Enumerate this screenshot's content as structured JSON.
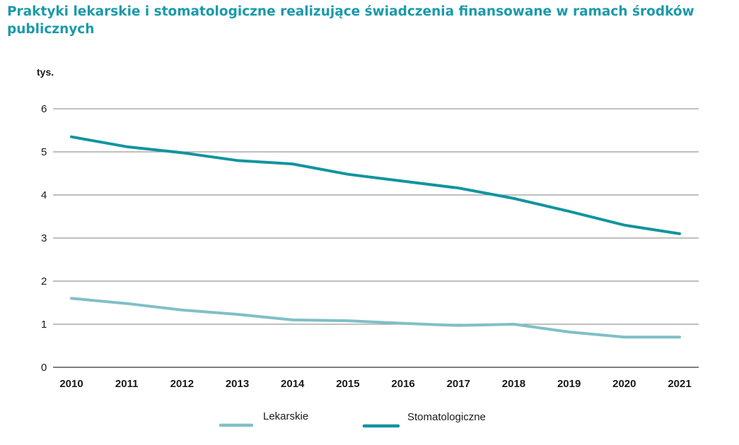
{
  "colors": {
    "title": "#1a9aaa",
    "lekarskie": "#7fc0c6",
    "stomatologiczne": "#12949f",
    "grid": "#9a9a9a"
  },
  "chart_data": {
    "type": "line",
    "title": "Praktyki lekarskie i stomatologiczne realizujące świadczenia finansowane w ramach środków publicznych",
    "ylabel": "tys.",
    "xlabel": "",
    "categories": [
      "2010",
      "2011",
      "2012",
      "2013",
      "2014",
      "2015",
      "2016",
      "2017",
      "2018",
      "2019",
      "2020",
      "2021"
    ],
    "ylim": [
      0,
      6
    ],
    "yticks": [
      "0",
      "1",
      "2",
      "3",
      "4",
      "5",
      "6"
    ],
    "grid": true,
    "legend_position": "bottom",
    "series": [
      {
        "name": "Lekarskie",
        "color_key": "lekarskie",
        "values": [
          1.6,
          1.48,
          1.33,
          1.23,
          1.1,
          1.08,
          1.02,
          0.97,
          1.0,
          0.82,
          0.7,
          0.7
        ]
      },
      {
        "name": "Stomatologiczne",
        "color_key": "stomatologiczne",
        "values": [
          5.35,
          5.12,
          4.98,
          4.8,
          4.72,
          4.48,
          4.32,
          4.16,
          3.92,
          3.62,
          3.3,
          3.1
        ]
      }
    ]
  }
}
